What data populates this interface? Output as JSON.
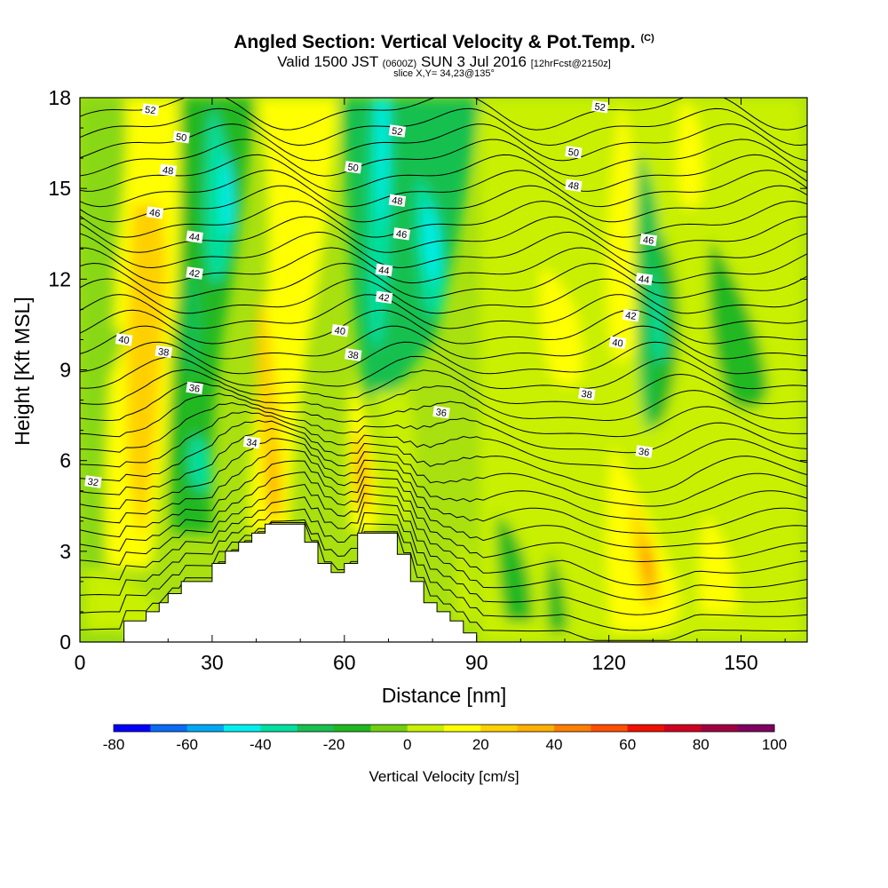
{
  "title": {
    "main": "Angled Section: Vertical Velocity & Pot.Temp.",
    "main_suffix": "(C)",
    "valid_prefix": "Valid 1500 JST",
    "valid_zulu": "(0600Z)",
    "valid_date": "SUN 3 Jul 2016",
    "forecast": "[12hrFcst@2150z]",
    "slice": "slice X,Y= 34,23@135°"
  },
  "chart_data": {
    "type": "heatmap",
    "xlabel": "Distance [nm]",
    "ylabel": "Height [Kft MSL]",
    "xlim": [
      0,
      165
    ],
    "ylim": [
      0,
      18
    ],
    "x_ticks": [
      0,
      30,
      60,
      90,
      120,
      150
    ],
    "y_ticks": [
      0,
      3,
      6,
      9,
      12,
      15,
      18
    ],
    "grid": false,
    "colorbar": {
      "label": "Vertical Velocity [cm/s]",
      "min": -80,
      "max": 100,
      "step": 10,
      "tick_values": [
        -80,
        -60,
        -40,
        -20,
        0,
        20,
        40,
        60,
        80,
        100
      ],
      "colors": [
        "#0000ff",
        "#0a6cf5",
        "#00a8f5",
        "#00f0f0",
        "#00e0a0",
        "#18c050",
        "#20b820",
        "#70d010",
        "#c8f000",
        "#ffff00",
        "#ffd000",
        "#ffb000",
        "#ff8000",
        "#ff5000",
        "#f01000",
        "#d00020",
        "#a00040",
        "#800060"
      ]
    },
    "fields": [
      {
        "name": "Vertical Velocity",
        "units": "cm/s",
        "render": "filled_contour"
      },
      {
        "name": "Pot.Temp.",
        "units": "C",
        "render": "line_contour",
        "interval": 1
      }
    ],
    "terrain_profile": {
      "distance": [
        0,
        10,
        10,
        15,
        15,
        18,
        18,
        20,
        20,
        23,
        23,
        30,
        30,
        33,
        33,
        36,
        36,
        39,
        39,
        42,
        42,
        45,
        45,
        51,
        51,
        54,
        54,
        57,
        57,
        60,
        60,
        63,
        63,
        66,
        66,
        72,
        72,
        75,
        75,
        78,
        78,
        81,
        81,
        84,
        84,
        87,
        87,
        90,
        90,
        165
      ],
      "height": [
        0,
        0,
        0.7,
        0.7,
        1.0,
        1.0,
        1.3,
        1.3,
        1.6,
        1.6,
        2.0,
        2.0,
        2.6,
        2.6,
        3.0,
        3.0,
        3.3,
        3.3,
        3.6,
        3.6,
        3.9,
        3.9,
        3.9,
        3.9,
        3.3,
        3.3,
        2.6,
        2.6,
        2.3,
        2.3,
        2.6,
        2.6,
        3.6,
        3.6,
        3.6,
        3.6,
        2.9,
        2.9,
        2.0,
        2.0,
        1.3,
        1.3,
        1.0,
        1.0,
        0.7,
        0.7,
        0.3,
        0.3,
        0,
        0
      ]
    },
    "contour_labels": [
      {
        "value": "52",
        "x": 16,
        "y": 17.6
      },
      {
        "value": "50",
        "x": 23,
        "y": 16.7
      },
      {
        "value": "48",
        "x": 20,
        "y": 15.6
      },
      {
        "value": "46",
        "x": 17,
        "y": 14.2
      },
      {
        "value": "44",
        "x": 26,
        "y": 13.4
      },
      {
        "value": "42",
        "x": 26,
        "y": 12.2
      },
      {
        "value": "40",
        "x": 10,
        "y": 10.0
      },
      {
        "value": "38",
        "x": 19,
        "y": 9.6
      },
      {
        "value": "36",
        "x": 26,
        "y": 8.4
      },
      {
        "value": "34",
        "x": 39,
        "y": 6.6
      },
      {
        "value": "32",
        "x": 3,
        "y": 5.3
      },
      {
        "value": "52",
        "x": 72,
        "y": 16.9
      },
      {
        "value": "50",
        "x": 62,
        "y": 15.7
      },
      {
        "value": "48",
        "x": 72,
        "y": 14.6
      },
      {
        "value": "46",
        "x": 73,
        "y": 13.5
      },
      {
        "value": "44",
        "x": 69,
        "y": 12.3
      },
      {
        "value": "42",
        "x": 69,
        "y": 11.4
      },
      {
        "value": "40",
        "x": 59,
        "y": 10.3
      },
      {
        "value": "38",
        "x": 62,
        "y": 9.5
      },
      {
        "value": "36",
        "x": 82,
        "y": 7.6
      },
      {
        "value": "52",
        "x": 118,
        "y": 17.7
      },
      {
        "value": "50",
        "x": 112,
        "y": 16.2
      },
      {
        "value": "48",
        "x": 112,
        "y": 15.1
      },
      {
        "value": "46",
        "x": 129,
        "y": 13.3
      },
      {
        "value": "44",
        "x": 128,
        "y": 12.0
      },
      {
        "value": "42",
        "x": 125,
        "y": 10.8
      },
      {
        "value": "40",
        "x": 122,
        "y": 9.9
      },
      {
        "value": "38",
        "x": 115,
        "y": 8.2
      },
      {
        "value": "36",
        "x": 128,
        "y": 6.3
      }
    ]
  }
}
